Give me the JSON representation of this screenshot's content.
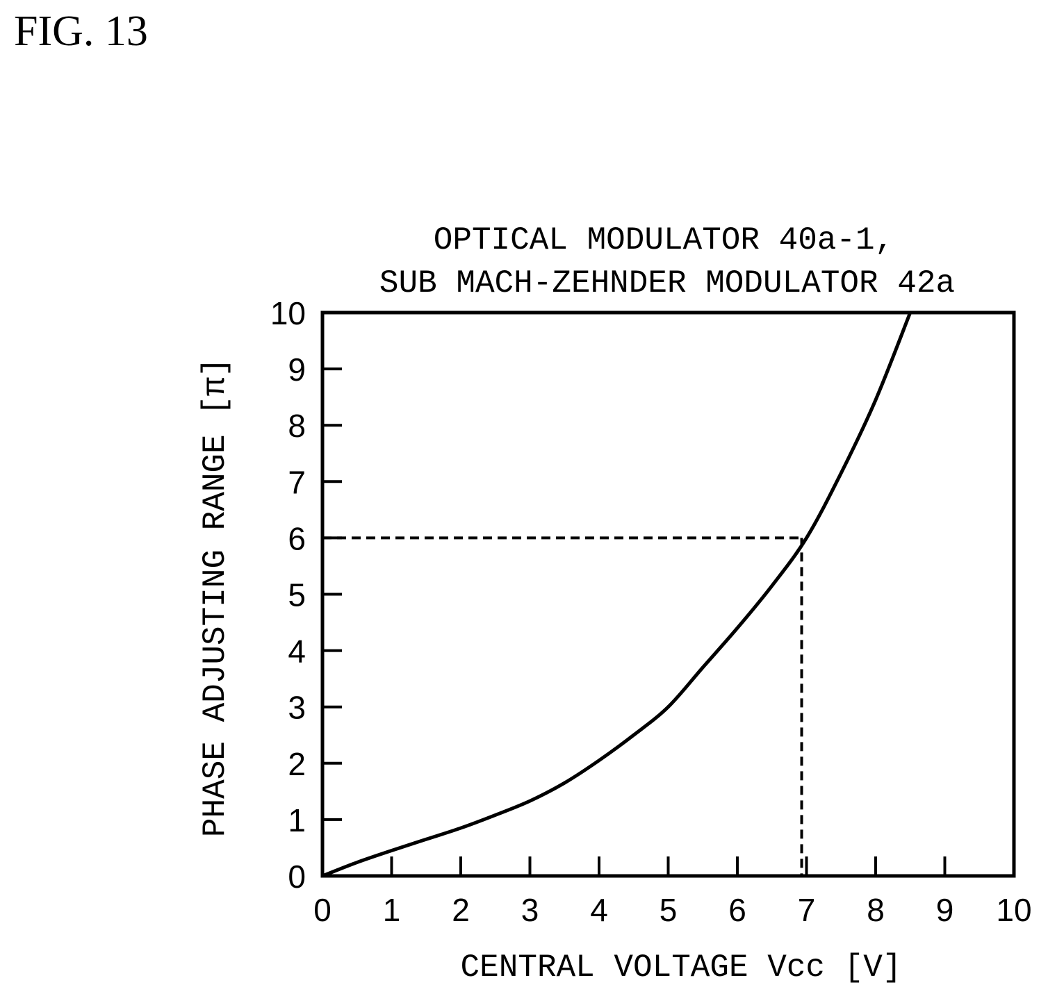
{
  "figure_label": "FIG. 13",
  "chart_data": {
    "type": "line",
    "title_lines": [
      "OPTICAL MODULATOR 40a-1,",
      "SUB MACH-ZEHNDER MODULATOR 42a"
    ],
    "xlabel": "CENTRAL VOLTAGE Vcc [V]",
    "ylabel": "PHASE ADJUSTING RANGE [π]",
    "xlim": [
      0,
      10
    ],
    "ylim": [
      0,
      10
    ],
    "xticks": [
      "0",
      "1",
      "2",
      "3",
      "4",
      "5",
      "6",
      "7",
      "8",
      "9",
      "10"
    ],
    "yticks": [
      "0",
      "1",
      "2",
      "3",
      "4",
      "5",
      "6",
      "7",
      "8",
      "9",
      "10"
    ],
    "grid": false,
    "series": [
      {
        "x": [
          0,
          0.5,
          1,
          1.5,
          2,
          2.5,
          3,
          3.5,
          4,
          4.5,
          5,
          5.5,
          6,
          6.5,
          7,
          7.5,
          8,
          8.5
        ],
        "y": [
          0,
          0.24,
          0.45,
          0.65,
          0.85,
          1.08,
          1.33,
          1.65,
          2.05,
          2.5,
          3.0,
          3.7,
          4.4,
          5.15,
          6.0,
          7.15,
          8.45,
          10.0
        ]
      }
    ],
    "reference_point": {
      "x": 6.93,
      "y": 6
    }
  }
}
